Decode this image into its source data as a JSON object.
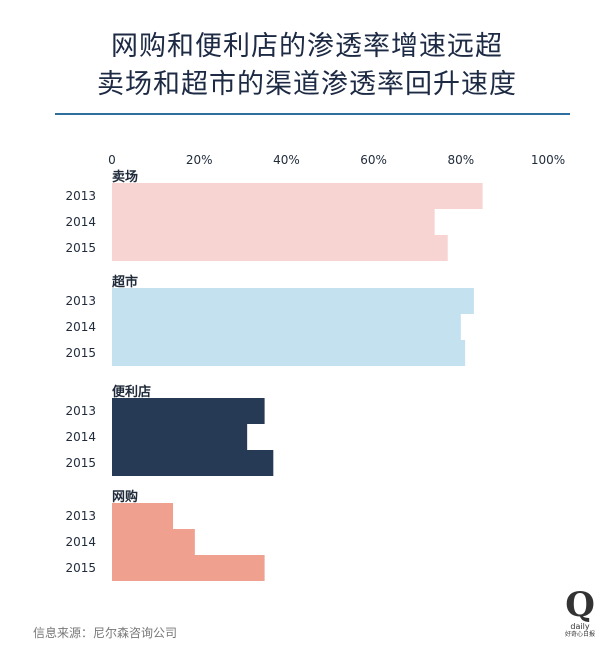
{
  "title": {
    "line1": "网购和便利店的渗透率增速远超",
    "line2": "卖场和超市的渠道渗透率回升速度"
  },
  "source": "信息来源：尼尔森咨询公司",
  "logo": {
    "mark": "Q",
    "word": "daily",
    "caption": "好奇心日报"
  },
  "chart_data": {
    "type": "bar",
    "orientation": "horizontal",
    "xlim": [
      0,
      100
    ],
    "xticks": [
      "0",
      "20%",
      "40%",
      "60%",
      "80%",
      "100%"
    ],
    "groups": [
      {
        "name": "卖场",
        "color": "#f7d4d2",
        "categories": [
          "2013",
          "2014",
          "2015"
        ],
        "values": [
          85,
          74,
          77
        ]
      },
      {
        "name": "超市",
        "color": "#c4e1f0",
        "categories": [
          "2013",
          "2014",
          "2015"
        ],
        "values": [
          83,
          80,
          81
        ]
      },
      {
        "name": "便利店",
        "color": "#263a55",
        "categories": [
          "2013",
          "2014",
          "2015"
        ],
        "values": [
          35,
          31,
          37
        ]
      },
      {
        "name": "网购",
        "color": "#f0a08f",
        "categories": [
          "2013",
          "2014",
          "2015"
        ],
        "values": [
          14,
          19,
          35
        ]
      }
    ]
  }
}
